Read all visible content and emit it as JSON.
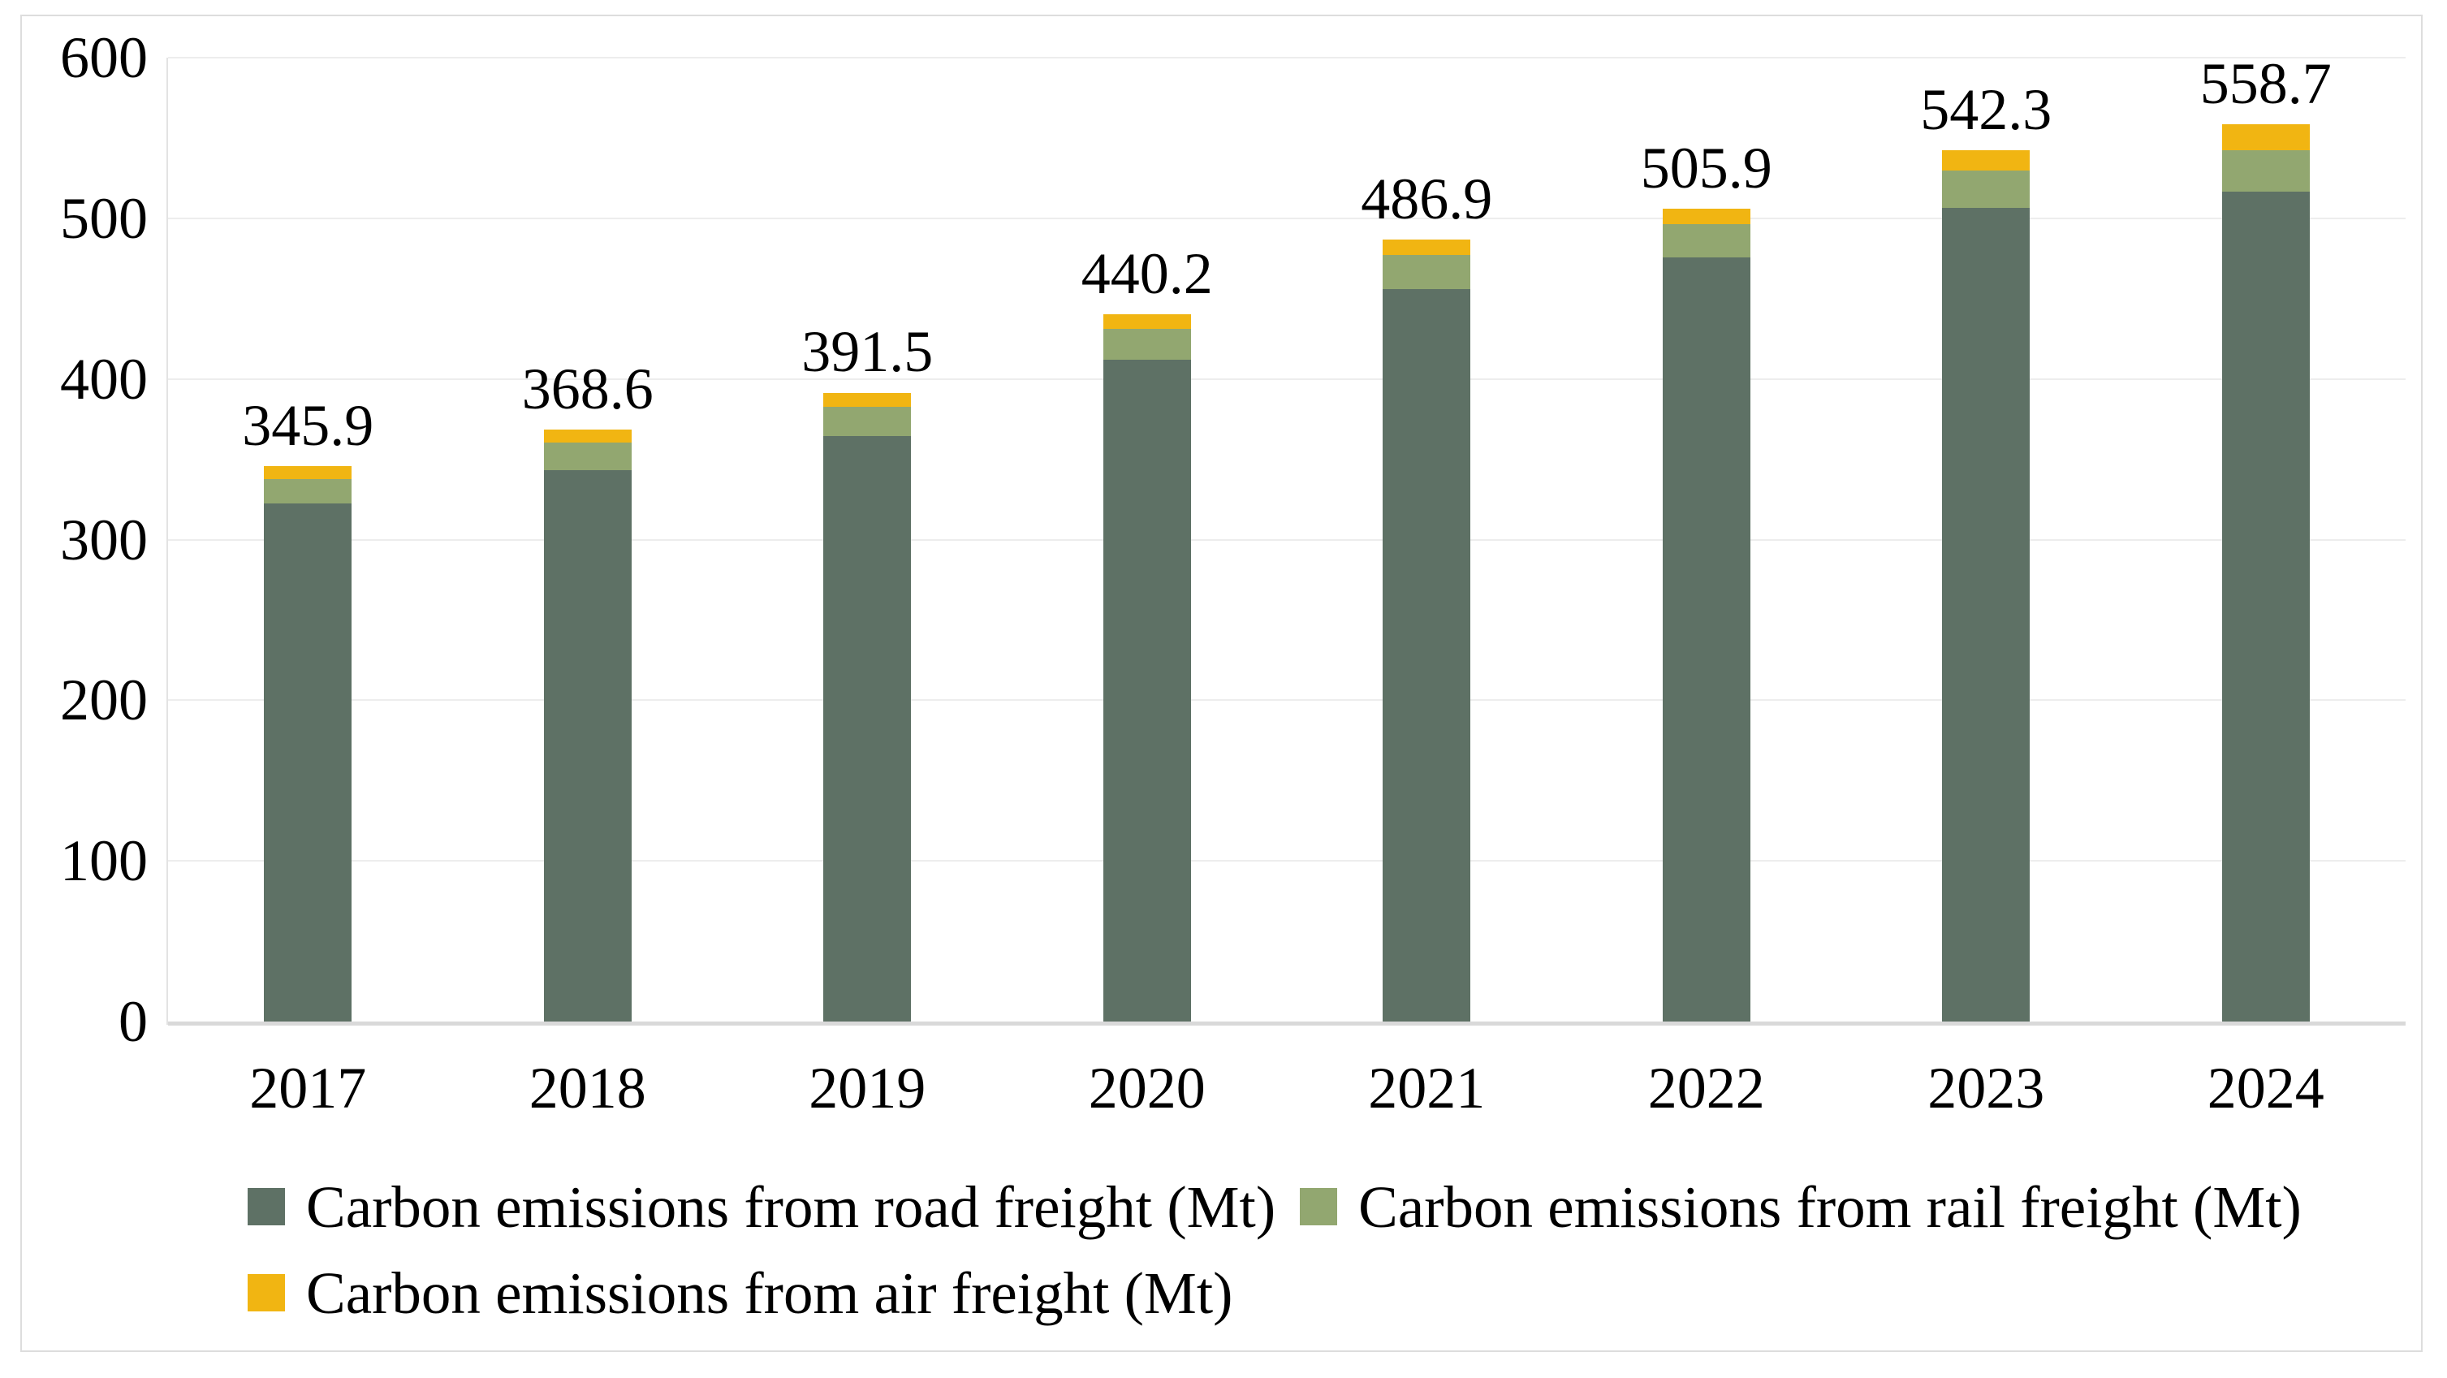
{
  "chart_data": {
    "type": "bar",
    "stacked": true,
    "title": "",
    "categories": [
      "2017",
      "2018",
      "2019",
      "2020",
      "2021",
      "2022",
      "2023",
      "2024"
    ],
    "series": [
      {
        "name": "Carbon emissions from road freight (Mt)",
        "color": "#5e7165",
        "values": [
          322.4,
          343.1,
          364.6,
          411.8,
          455.8,
          475.5,
          506.3,
          516.4
        ]
      },
      {
        "name": "Carbon emissions from rail freight (Mt)",
        "color": "#92a770",
        "values": [
          15.5,
          17.2,
          18.1,
          19.2,
          21.3,
          20.8,
          23.5,
          26.0
        ]
      },
      {
        "name": "Carbon emissions from air freight (Mt)",
        "color": "#f1b512",
        "values": [
          8.0,
          8.3,
          8.8,
          9.2,
          9.8,
          9.6,
          12.5,
          16.3
        ]
      }
    ],
    "totals": [
      345.9,
      368.6,
      391.5,
      440.2,
      486.9,
      505.9,
      542.3,
      558.7
    ],
    "total_labels": [
      "345.9",
      "368.6",
      "391.5",
      "440.2",
      "486.9",
      "505.9",
      "542.3",
      "558.7"
    ],
    "y_axis": {
      "min": 0,
      "max": 600,
      "step": 100,
      "ticks": [
        "0",
        "100",
        "200",
        "300",
        "400",
        "500",
        "600"
      ]
    },
    "grid": true,
    "legend_position": "bottom",
    "legend_rows": [
      [
        0,
        1
      ],
      [
        2
      ]
    ]
  },
  "colors": {
    "background": "#ffffff",
    "frame_border": "#dddddd",
    "gridline": "#ededed",
    "axis_line": "#d9d9d9",
    "text": "#000000"
  }
}
